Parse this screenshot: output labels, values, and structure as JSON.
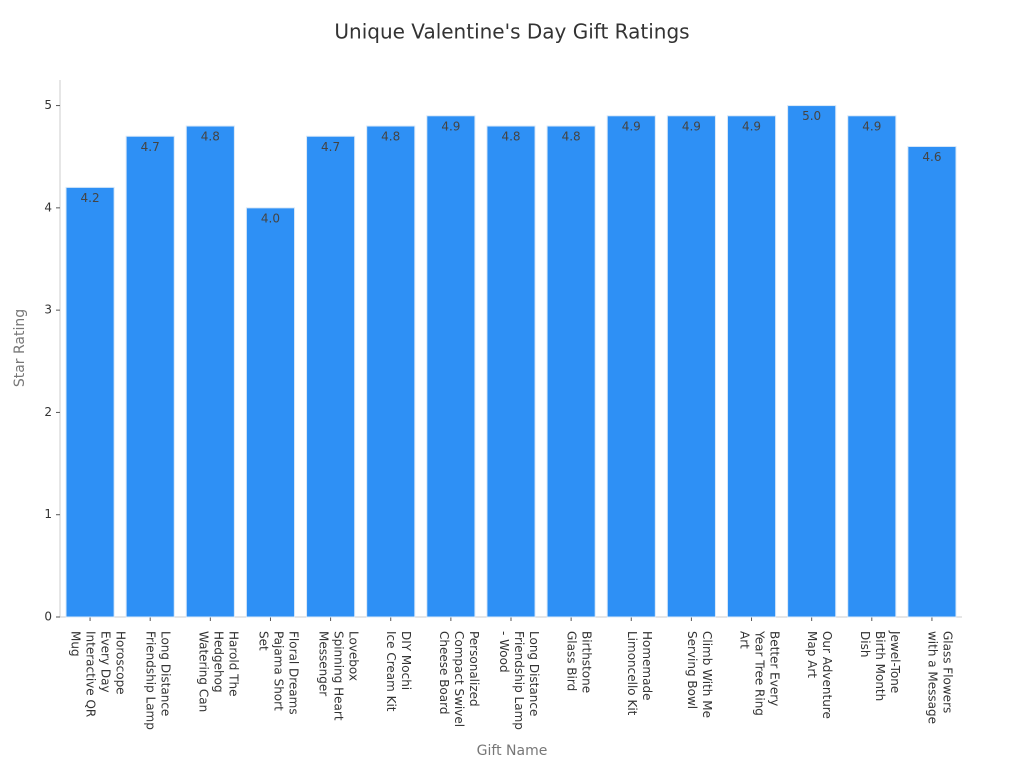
{
  "chart_data": {
    "type": "bar",
    "title": "Unique Valentine's Day Gift Ratings",
    "xlabel": "Gift Name",
    "ylabel": "Star Rating",
    "categories": [
      "Horoscope\nEvery Day\nInteractive QR\nMug",
      "Long Distance\nFriendship Lamp",
      "Harold The\nHedgehog\nWatering Can",
      "Floral Dreams\nPajama Short\nSet",
      "Lovebox\nSpinning Heart\nMessenger",
      "DIY Mochi\nIce Cream Kit",
      "Personalized\nCompact Swivel\nCheese Board",
      "Long Distance\nFriendship Lamp\n- Wood",
      "Birthstone\nGlass Bird",
      "Homemade\nLimoncello Kit",
      "Climb With Me\nServing Bowl",
      "Better Every\nYear Tree Ring\nArt",
      "Our Adventure\nMap Art",
      "Jewel-Tone\nBirth Month\nDish",
      "Glass Flowers\nwith a Message"
    ],
    "values": [
      4.2,
      4.7,
      4.8,
      4.0,
      4.7,
      4.8,
      4.9,
      4.8,
      4.8,
      4.9,
      4.9,
      4.9,
      5.0,
      4.9,
      4.6
    ],
    "value_labels": [
      "4.2",
      "4.7",
      "4.8",
      "4.0",
      "4.7",
      "4.8",
      "4.9",
      "4.8",
      "4.8",
      "4.9",
      "4.9",
      "4.9",
      "5.0",
      "4.9",
      "4.6"
    ],
    "color": "#2e90f5",
    "ylim": [
      0,
      5.25
    ],
    "yticks": [
      0,
      1,
      2,
      3,
      4,
      5
    ],
    "grid": false
  }
}
